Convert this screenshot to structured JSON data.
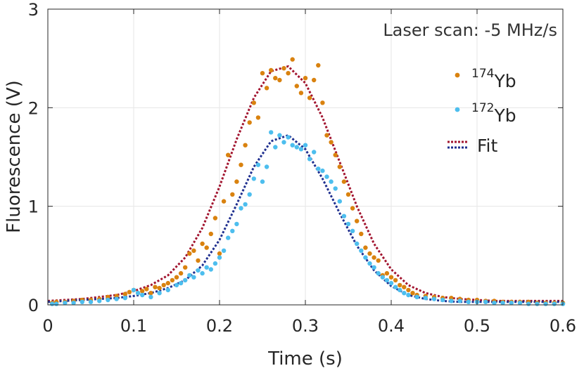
{
  "chart_data": {
    "type": "scatter",
    "title": "",
    "annotation": "Laser scan: -5 MHz/s",
    "xlabel": "Time (s)",
    "ylabel": "Fluorescence (V)",
    "xlim": [
      0,
      0.6
    ],
    "ylim": [
      0,
      3
    ],
    "xticks": [
      0,
      0.1,
      0.2,
      0.3,
      0.4,
      0.5,
      0.6
    ],
    "xtick_labels": [
      "0",
      "0.1",
      "0.2",
      "0.3",
      "0.4",
      "0.5",
      "0.6"
    ],
    "yticks": [
      0,
      1,
      2,
      3
    ],
    "ytick_labels": [
      "0",
      "1",
      "2",
      "3"
    ],
    "grid": true,
    "legend_position": "top-right",
    "legend": [
      {
        "sup": "174",
        "label": "Yb",
        "marker": "dot",
        "color": "#D9820F"
      },
      {
        "sup": "172",
        "label": "Yb",
        "marker": "dot",
        "color": "#4DBEEE"
      },
      {
        "label": "Fit",
        "marker": "dotted-line",
        "colors": [
          "#A2142F",
          "#1F2F8F"
        ]
      }
    ],
    "series": [
      {
        "name": "174Yb",
        "kind": "points",
        "color": "#D9820F",
        "x": [
          0.005,
          0.01,
          0.02,
          0.03,
          0.04,
          0.05,
          0.06,
          0.07,
          0.08,
          0.09,
          0.095,
          0.1,
          0.105,
          0.11,
          0.115,
          0.12,
          0.125,
          0.13,
          0.135,
          0.14,
          0.145,
          0.15,
          0.155,
          0.16,
          0.165,
          0.17,
          0.175,
          0.18,
          0.185,
          0.19,
          0.195,
          0.2,
          0.205,
          0.21,
          0.215,
          0.22,
          0.225,
          0.23,
          0.235,
          0.24,
          0.245,
          0.25,
          0.255,
          0.26,
          0.265,
          0.27,
          0.275,
          0.28,
          0.285,
          0.29,
          0.295,
          0.3,
          0.305,
          0.31,
          0.315,
          0.32,
          0.325,
          0.33,
          0.335,
          0.34,
          0.345,
          0.35,
          0.355,
          0.36,
          0.365,
          0.37,
          0.375,
          0.38,
          0.385,
          0.39,
          0.395,
          0.4,
          0.405,
          0.41,
          0.415,
          0.42,
          0.425,
          0.43,
          0.44,
          0.45,
          0.46,
          0.47,
          0.48,
          0.49,
          0.5,
          0.51,
          0.52,
          0.53,
          0.54,
          0.55,
          0.56,
          0.57,
          0.58,
          0.59,
          0.6
        ],
        "y": [
          0.02,
          0.03,
          0.03,
          0.04,
          0.05,
          0.05,
          0.06,
          0.08,
          0.09,
          0.11,
          0.13,
          0.15,
          0.12,
          0.14,
          0.16,
          0.12,
          0.18,
          0.17,
          0.2,
          0.22,
          0.25,
          0.28,
          0.32,
          0.38,
          0.52,
          0.55,
          0.45,
          0.62,
          0.58,
          0.72,
          0.88,
          0.52,
          1.05,
          1.52,
          1.12,
          1.25,
          1.42,
          1.62,
          1.85,
          2.05,
          1.9,
          2.35,
          2.2,
          2.38,
          2.3,
          2.28,
          2.4,
          2.35,
          2.49,
          2.22,
          2.15,
          2.3,
          2.1,
          2.28,
          2.43,
          2.05,
          1.72,
          1.65,
          1.52,
          1.4,
          1.25,
          1.12,
          0.98,
          0.85,
          0.72,
          0.58,
          0.52,
          0.48,
          0.45,
          0.3,
          0.32,
          0.28,
          0.25,
          0.2,
          0.18,
          0.15,
          0.12,
          0.1,
          0.09,
          0.08,
          0.07,
          0.07,
          0.06,
          0.05,
          0.05,
          0.04,
          0.04,
          0.03,
          0.03,
          0.03,
          0.03,
          0.02,
          0.02,
          0.02,
          0.02
        ]
      },
      {
        "name": "172Yb",
        "kind": "points",
        "color": "#4DBEEE",
        "x": [
          0.005,
          0.01,
          0.02,
          0.03,
          0.04,
          0.05,
          0.06,
          0.07,
          0.08,
          0.09,
          0.1,
          0.105,
          0.11,
          0.12,
          0.13,
          0.14,
          0.15,
          0.155,
          0.16,
          0.165,
          0.17,
          0.175,
          0.18,
          0.185,
          0.19,
          0.195,
          0.2,
          0.205,
          0.21,
          0.215,
          0.22,
          0.225,
          0.23,
          0.235,
          0.24,
          0.245,
          0.25,
          0.255,
          0.26,
          0.265,
          0.27,
          0.275,
          0.28,
          0.285,
          0.29,
          0.295,
          0.3,
          0.305,
          0.31,
          0.315,
          0.32,
          0.325,
          0.33,
          0.335,
          0.34,
          0.345,
          0.35,
          0.355,
          0.36,
          0.365,
          0.37,
          0.375,
          0.38,
          0.385,
          0.39,
          0.395,
          0.4,
          0.405,
          0.41,
          0.415,
          0.42,
          0.43,
          0.44,
          0.45,
          0.46,
          0.47,
          0.48,
          0.49,
          0.5,
          0.51,
          0.52,
          0.53,
          0.54,
          0.55,
          0.56,
          0.57,
          0.58,
          0.59,
          0.6
        ],
        "y": [
          0.01,
          0.01,
          0.02,
          0.02,
          0.03,
          0.03,
          0.04,
          0.05,
          0.06,
          0.07,
          0.15,
          0.12,
          0.1,
          0.08,
          0.12,
          0.15,
          0.2,
          0.22,
          0.25,
          0.3,
          0.28,
          0.35,
          0.32,
          0.38,
          0.36,
          0.42,
          0.48,
          0.55,
          0.68,
          0.75,
          0.82,
          0.98,
          1.02,
          1.12,
          1.28,
          1.42,
          1.25,
          1.4,
          1.75,
          1.6,
          1.72,
          1.65,
          1.7,
          1.62,
          1.6,
          1.58,
          1.62,
          1.48,
          1.55,
          1.38,
          1.36,
          1.3,
          1.25,
          1.18,
          1.05,
          0.9,
          0.82,
          0.75,
          0.62,
          0.55,
          0.48,
          0.42,
          0.38,
          0.32,
          0.28,
          0.25,
          0.22,
          0.18,
          0.15,
          0.12,
          0.1,
          0.08,
          0.07,
          0.06,
          0.05,
          0.04,
          0.04,
          0.03,
          0.03,
          0.03,
          0.02,
          0.02,
          0.02,
          0.02,
          0.01,
          0.01,
          0.01,
          0.01,
          0.01
        ]
      },
      {
        "name": "Fit 174Yb",
        "kind": "fit",
        "color": "#A2142F",
        "x": [
          0,
          0.02,
          0.04,
          0.06,
          0.08,
          0.1,
          0.12,
          0.14,
          0.16,
          0.18,
          0.2,
          0.22,
          0.24,
          0.26,
          0.28,
          0.3,
          0.32,
          0.34,
          0.36,
          0.38,
          0.4,
          0.42,
          0.44,
          0.46,
          0.48,
          0.5,
          0.52,
          0.54,
          0.56,
          0.58,
          0.6
        ],
        "y": [
          0.04,
          0.05,
          0.06,
          0.08,
          0.1,
          0.14,
          0.2,
          0.3,
          0.48,
          0.78,
          1.2,
          1.68,
          2.1,
          2.37,
          2.42,
          2.25,
          1.9,
          1.45,
          1.0,
          0.62,
          0.36,
          0.2,
          0.12,
          0.08,
          0.06,
          0.05,
          0.04,
          0.04,
          0.04,
          0.04,
          0.04
        ]
      },
      {
        "name": "Fit 172Yb",
        "kind": "fit",
        "color": "#1F2F8F",
        "x": [
          0,
          0.02,
          0.04,
          0.06,
          0.08,
          0.1,
          0.12,
          0.14,
          0.16,
          0.18,
          0.2,
          0.22,
          0.24,
          0.26,
          0.28,
          0.3,
          0.32,
          0.34,
          0.36,
          0.38,
          0.4,
          0.42,
          0.44,
          0.46,
          0.48,
          0.5,
          0.52,
          0.54,
          0.56,
          0.58,
          0.6
        ],
        "y": [
          0.03,
          0.04,
          0.05,
          0.06,
          0.07,
          0.09,
          0.12,
          0.17,
          0.25,
          0.4,
          0.66,
          1.02,
          1.4,
          1.66,
          1.72,
          1.58,
          1.28,
          0.93,
          0.6,
          0.35,
          0.19,
          0.1,
          0.06,
          0.04,
          0.03,
          0.03,
          0.03,
          0.03,
          0.03,
          0.03,
          0.03
        ]
      }
    ]
  }
}
